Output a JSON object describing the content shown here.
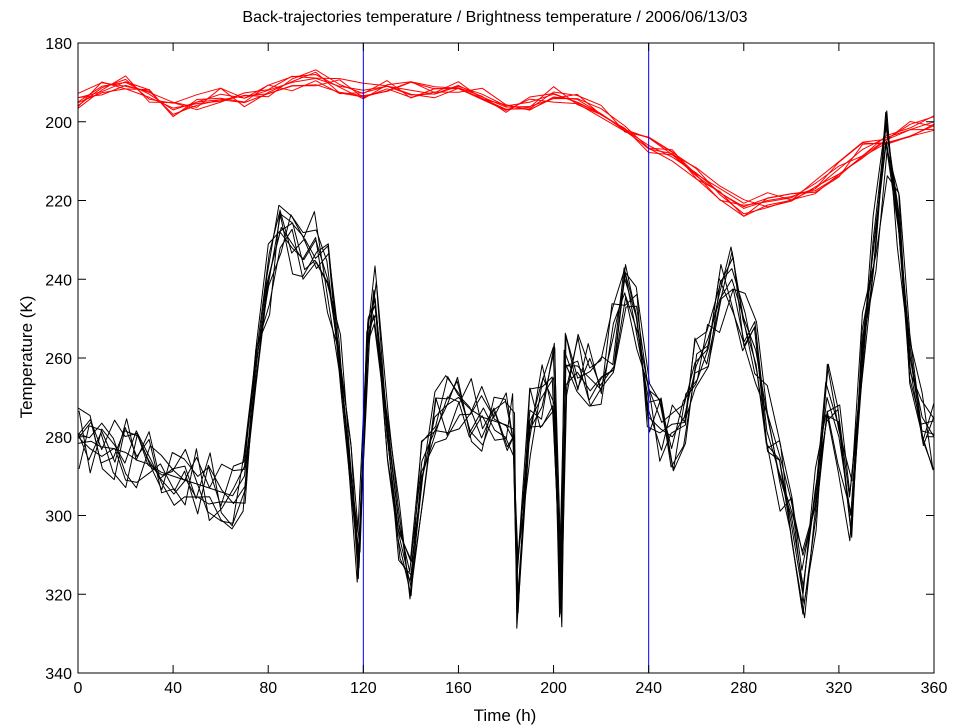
{
  "chart_data": {
    "type": "line",
    "title": "Back-trajectories temperature / Brightness temperature / 2006/06/13/03",
    "xlabel": "Time (h)",
    "ylabel": "Temperature (K)",
    "xlim": [
      0,
      360
    ],
    "ylim": [
      180,
      340
    ],
    "y_reversed": true,
    "grid": false,
    "xticks": [
      "0",
      "40",
      "80",
      "120",
      "160",
      "200",
      "240",
      "280",
      "320",
      "360"
    ],
    "yticks": [
      "180",
      "200",
      "220",
      "240",
      "260",
      "280",
      "300",
      "320",
      "340"
    ],
    "vertical_lines": [
      120,
      240
    ],
    "colors": {
      "trajectory": "#ff0000",
      "brightness": "#000000",
      "marker": "#0000ff"
    },
    "series": [
      {
        "group": "trajectory",
        "x": [
          0,
          10,
          20,
          30,
          40,
          50,
          60,
          70,
          80,
          90,
          100,
          110,
          120,
          130,
          140,
          150,
          160,
          170,
          180,
          190,
          200,
          210,
          220,
          230,
          240,
          250,
          260,
          270,
          280,
          290,
          300,
          310,
          320,
          330,
          340,
          350,
          360
        ],
        "values": [
          195,
          191,
          190,
          193,
          197,
          195,
          193,
          194,
          192,
          190,
          189,
          191,
          192,
          191,
          192,
          193,
          191,
          193,
          196,
          195,
          193,
          195,
          198,
          202,
          206,
          209,
          213,
          218,
          222,
          220,
          219,
          217,
          212,
          207,
          204,
          202,
          200
        ]
      },
      {
        "group": "brightness",
        "x": [
          0,
          5,
          10,
          15,
          20,
          25,
          30,
          35,
          40,
          45,
          50,
          55,
          60,
          65,
          70,
          75,
          80,
          85,
          90,
          95,
          100,
          105,
          110,
          115,
          118,
          122,
          125,
          130,
          135,
          140,
          145,
          150,
          155,
          160,
          165,
          170,
          175,
          180,
          183,
          185,
          190,
          195,
          200,
          203,
          205,
          210,
          215,
          220,
          225,
          230,
          235,
          240,
          245,
          250,
          255,
          260,
          265,
          270,
          275,
          280,
          285,
          290,
          295,
          300,
          305,
          310,
          315,
          320,
          325,
          330,
          335,
          340,
          345,
          350,
          355,
          360
        ],
        "values": [
          280,
          283,
          285,
          283,
          284,
          286,
          287,
          289,
          290,
          291,
          292,
          293,
          294,
          295,
          290,
          265,
          240,
          228,
          232,
          235,
          230,
          240,
          260,
          290,
          310,
          250,
          245,
          280,
          305,
          318,
          290,
          275,
          272,
          270,
          273,
          275,
          276,
          277,
          278,
          320,
          276,
          270,
          265,
          320,
          262,
          262,
          265,
          268,
          255,
          240,
          250,
          275,
          278,
          280,
          275,
          262,
          255,
          245,
          240,
          250,
          258,
          275,
          290,
          300,
          318,
          295,
          270,
          280,
          300,
          255,
          230,
          205,
          225,
          260,
          275,
          280
        ]
      }
    ]
  }
}
